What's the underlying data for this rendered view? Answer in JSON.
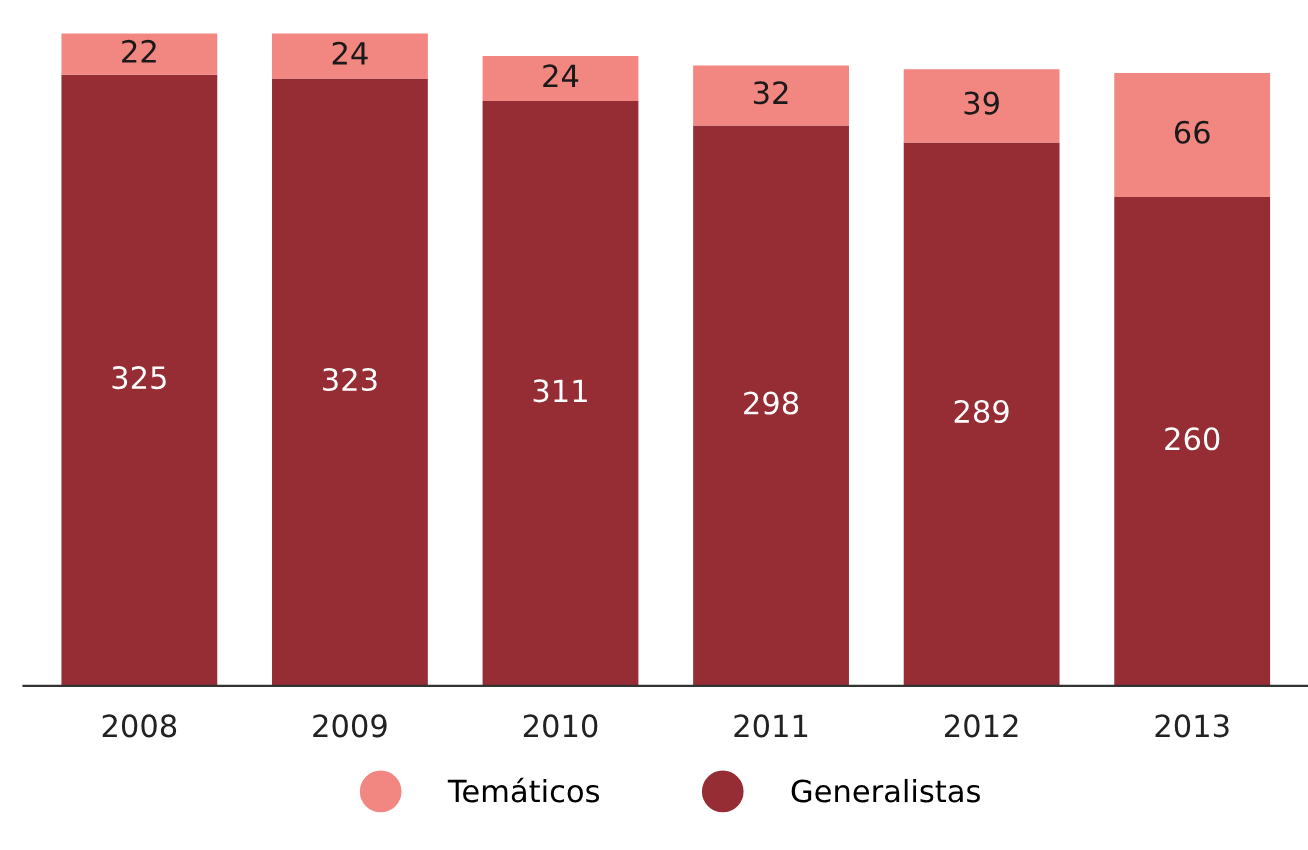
{
  "chart_data": {
    "type": "bar",
    "stacked": true,
    "data_labels": true,
    "legend": "bottom",
    "grid": false,
    "categories": [
      "2008",
      "2009",
      "2010",
      "2011",
      "2012",
      "2013"
    ],
    "series": [
      {
        "name": "Generalistas",
        "color": "#962d35",
        "values": [
          325,
          323,
          311,
          298,
          289,
          260
        ]
      },
      {
        "name": "Temáticos",
        "color": "#f28680",
        "values": [
          22,
          24,
          24,
          32,
          39,
          66
        ]
      }
    ]
  }
}
